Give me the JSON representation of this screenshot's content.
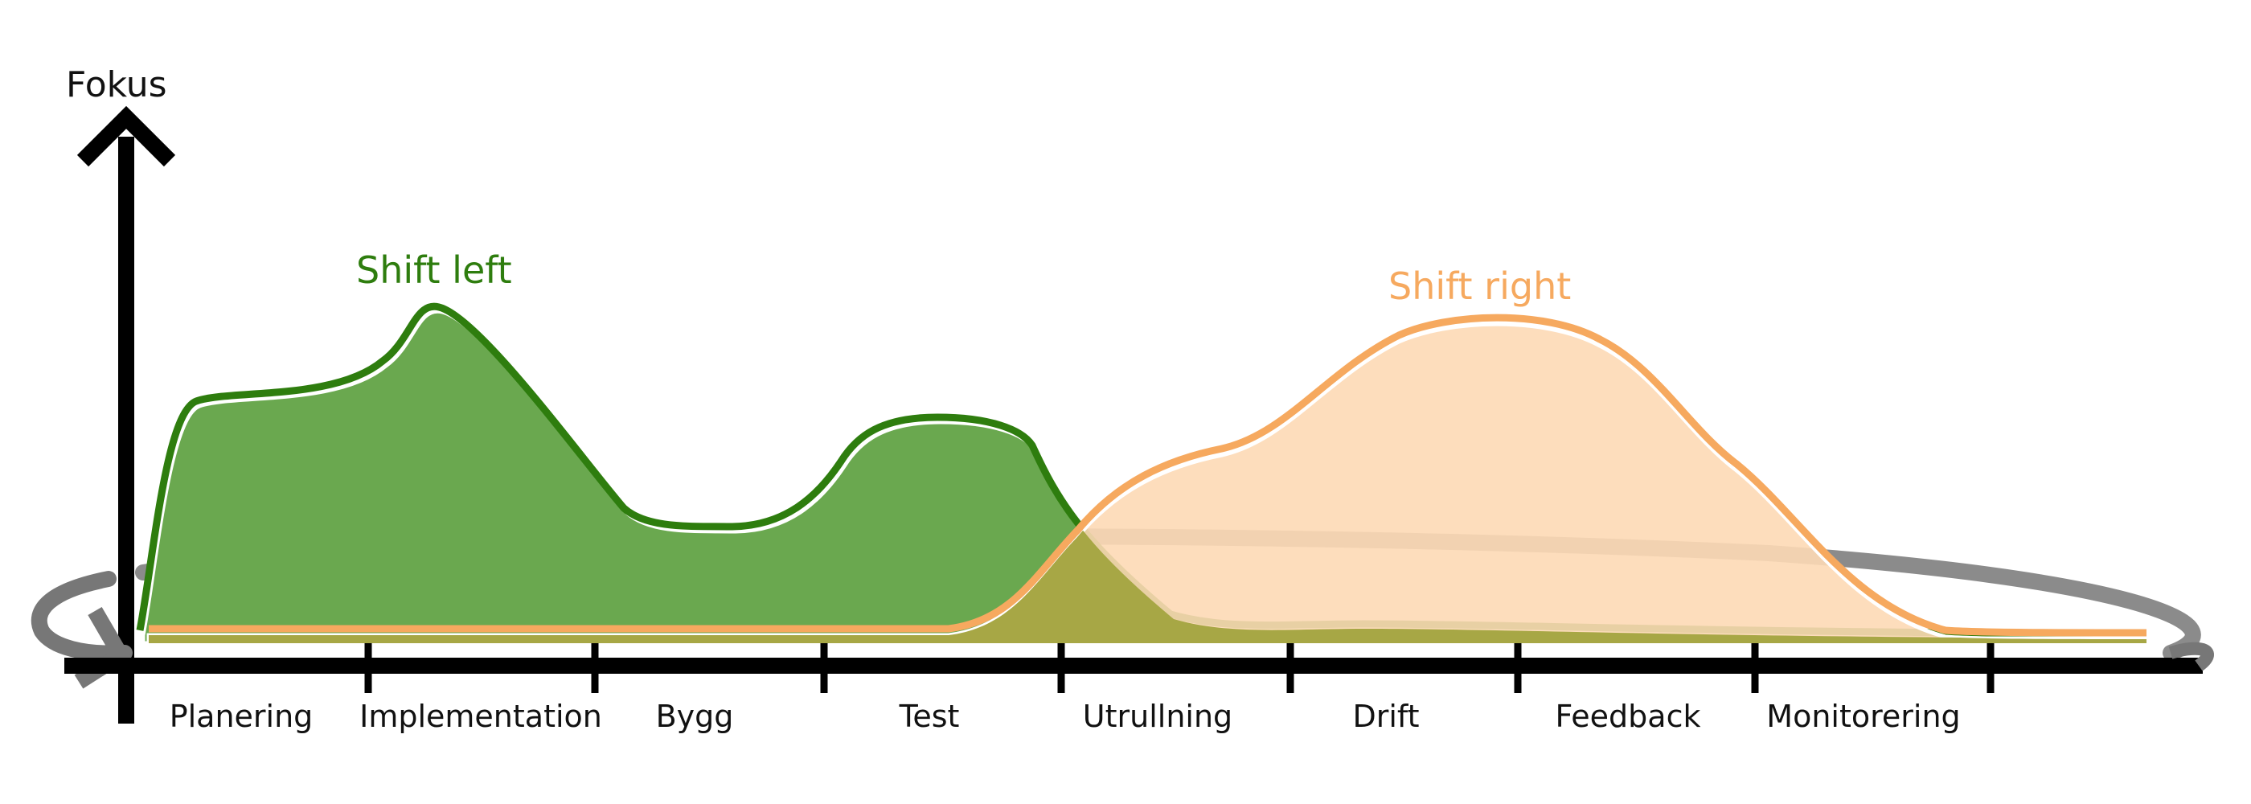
{
  "diagram": {
    "y_axis_label": "Fokus",
    "phases": [
      "Planering",
      "Implementation",
      "Bygg",
      "Test",
      "Utrullning",
      "Drift",
      "Feedback",
      "Monitorering"
    ],
    "curves": {
      "left": {
        "label": "Shift left",
        "color": "#2e7d0e",
        "fill": "#6aa84f"
      },
      "right": {
        "label": "Shift right",
        "color": "#f6a95f",
        "fill": "#fdd9b5"
      },
      "overlap_fill": "#a7a745"
    },
    "loop_color": "#7a7a7a",
    "axis_color": "#000000"
  }
}
